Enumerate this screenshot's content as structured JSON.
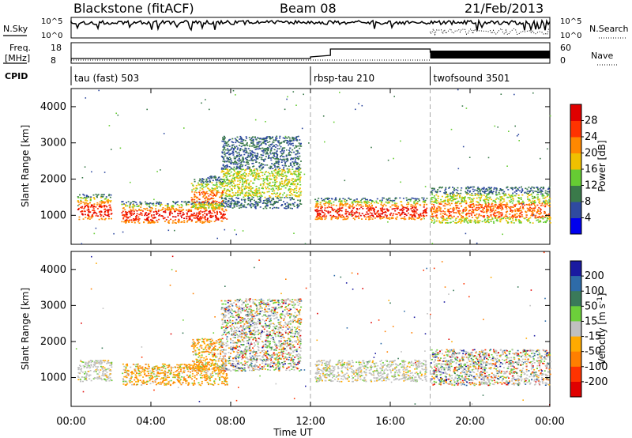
{
  "header": {
    "station": "Blackstone (fitACF)",
    "beam": "Beam 08",
    "date": "21/Feb/2013"
  },
  "strip_labels": {
    "nsky": "N.Sky",
    "nsky_ticks": [
      "10^5",
      "10^0"
    ],
    "nsearch": "N.Search",
    "nsearch_ticks": [
      "10^5",
      "10^0"
    ],
    "freq_line1": "Freq.",
    "freq_line2": "[MHz]",
    "freq_ticks": [
      "18",
      "8"
    ],
    "nave": "Nave",
    "nave_ticks": [
      "60",
      "0"
    ],
    "cpid": "CPID"
  },
  "cpid_segments": [
    {
      "label": "tau (fast) 503",
      "start_hour": 0
    },
    {
      "label": "rbsp-tau 210",
      "start_hour": 12
    },
    {
      "label": "twofsound 3501",
      "start_hour": 18
    }
  ],
  "xaxis": {
    "label": "Time UT",
    "ticks": [
      "00:00",
      "04:00",
      "08:00",
      "12:00",
      "16:00",
      "20:00",
      "00:00"
    ]
  },
  "chart_data": [
    {
      "type": "heatmap",
      "title": "",
      "ylabel": "Slant Range [km]",
      "xlabel": "",
      "xlim": [
        0,
        24
      ],
      "ylim": [
        200,
        4500
      ],
      "yticks": [
        1000,
        2000,
        3000,
        4000
      ],
      "colorbar": {
        "label": "Power [dB]",
        "ticks": [
          4,
          8,
          12,
          16,
          20,
          24,
          28
        ],
        "range": [
          0,
          32
        ],
        "colors": [
          "#0000ee",
          "#2f4aa0",
          "#3a7a4a",
          "#66cc33",
          "#f0c000",
          "#ff8800",
          "#ff3300",
          "#e00000"
        ]
      },
      "scatter_regions": [
        {
          "hours": [
            0.3,
            2.0
          ],
          "range_km": [
            900,
            1600
          ],
          "level": "high"
        },
        {
          "hours": [
            2.5,
            7.8
          ],
          "range_km": [
            800,
            1400
          ],
          "level": "high"
        },
        {
          "hours": [
            6.0,
            7.6
          ],
          "range_km": [
            1200,
            2100
          ],
          "level": "mid"
        },
        {
          "hours": [
            7.5,
            11.5
          ],
          "range_km": [
            1200,
            3200
          ],
          "level": "low"
        },
        {
          "hours": [
            12.2,
            17.8
          ],
          "range_km": [
            900,
            1500
          ],
          "level": "high"
        },
        {
          "hours": [
            18.0,
            24.0
          ],
          "range_km": [
            800,
            1800
          ],
          "level": "mid"
        }
      ]
    },
    {
      "type": "heatmap",
      "title": "",
      "ylabel": "Slant Range [km]",
      "xlabel": "Time UT",
      "xlim": [
        0,
        24
      ],
      "ylim": [
        200,
        4500
      ],
      "yticks": [
        1000,
        2000,
        3000,
        4000
      ],
      "colorbar": {
        "label": "Velocity [m s^-1]",
        "ticks": [
          200,
          100,
          50,
          15,
          -15,
          -50,
          -100,
          -200
        ],
        "range": [
          -250,
          250
        ],
        "colors": [
          "#1a1aa0",
          "#2e6ba8",
          "#3a7a5a",
          "#6ccf3a",
          "#c0c0c0",
          "#ffaa00",
          "#ff7f00",
          "#ff3300",
          "#e00000"
        ]
      },
      "scatter_regions": [
        {
          "hours": [
            0.3,
            2.0
          ],
          "range_km": [
            900,
            1500
          ],
          "level": "gray"
        },
        {
          "hours": [
            2.5,
            7.8
          ],
          "range_km": [
            800,
            1400
          ],
          "level": "orange"
        },
        {
          "hours": [
            6.0,
            7.6
          ],
          "range_km": [
            1200,
            2100
          ],
          "level": "orange"
        },
        {
          "hours": [
            7.5,
            11.5
          ],
          "range_km": [
            1200,
            3200
          ],
          "level": "mixed"
        },
        {
          "hours": [
            12.2,
            17.8
          ],
          "range_km": [
            900,
            1500
          ],
          "level": "gray"
        },
        {
          "hours": [
            18.0,
            24.0
          ],
          "range_km": [
            800,
            1800
          ],
          "level": "mixed"
        }
      ]
    }
  ]
}
